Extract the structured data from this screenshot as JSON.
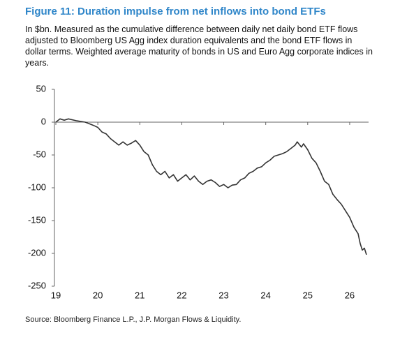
{
  "chart_data": {
    "type": "line",
    "title": "Figure 11: Duration impulse from net inflows into bond ETFs",
    "subtitle": "In $bn. Measured as the cumulative difference between daily net daily bond ETF flows adjusted to Bloomberg US Agg index duration equivalents and the bond ETF flows in dollar terms. Weighted average maturity of bonds in US and Euro Agg corporate indices in years.",
    "source": "Source: Bloomberg Finance L.P., J.P. Morgan Flows & Liquidity.",
    "x": [
      19.0,
      19.1,
      19.2,
      19.3,
      19.5,
      19.7,
      19.9,
      20.0,
      20.1,
      20.2,
      20.3,
      20.4,
      20.5,
      20.6,
      20.7,
      20.8,
      20.9,
      21.0,
      21.1,
      21.2,
      21.3,
      21.4,
      21.5,
      21.6,
      21.7,
      21.8,
      21.9,
      22.0,
      22.1,
      22.2,
      22.3,
      22.4,
      22.5,
      22.6,
      22.7,
      22.8,
      22.9,
      23.0,
      23.1,
      23.2,
      23.3,
      23.4,
      23.5,
      23.6,
      23.7,
      23.8,
      23.9,
      24.0,
      24.1,
      24.2,
      24.3,
      24.4,
      24.5,
      24.6,
      24.7,
      24.75,
      24.85,
      24.9,
      25.0,
      25.1,
      25.2,
      25.3,
      25.4,
      25.5,
      25.6,
      25.7,
      25.8,
      25.9,
      26.0,
      26.1,
      26.2,
      26.25,
      26.3,
      26.35,
      26.4
    ],
    "values": [
      0,
      5,
      3,
      5,
      2,
      0,
      -5,
      -8,
      -15,
      -18,
      -25,
      -30,
      -35,
      -30,
      -35,
      -32,
      -28,
      -35,
      -45,
      -50,
      -65,
      -75,
      -80,
      -75,
      -85,
      -80,
      -90,
      -85,
      -80,
      -88,
      -82,
      -90,
      -95,
      -90,
      -88,
      -92,
      -98,
      -95,
      -100,
      -96,
      -95,
      -88,
      -85,
      -78,
      -75,
      -70,
      -68,
      -62,
      -58,
      -52,
      -50,
      -48,
      -45,
      -40,
      -35,
      -30,
      -38,
      -33,
      -42,
      -55,
      -62,
      -75,
      -90,
      -95,
      -110,
      -118,
      -125,
      -135,
      -145,
      -160,
      -170,
      -185,
      -195,
      -192,
      -202
    ],
    "color": "#333333",
    "xlim": [
      19,
      26.45
    ],
    "xticks": [
      19,
      20,
      21,
      22,
      23,
      24,
      25,
      26
    ],
    "ylim": [
      -250,
      50
    ],
    "yticks": [
      50,
      0,
      -50,
      -100,
      -150,
      -200,
      -250
    ]
  }
}
